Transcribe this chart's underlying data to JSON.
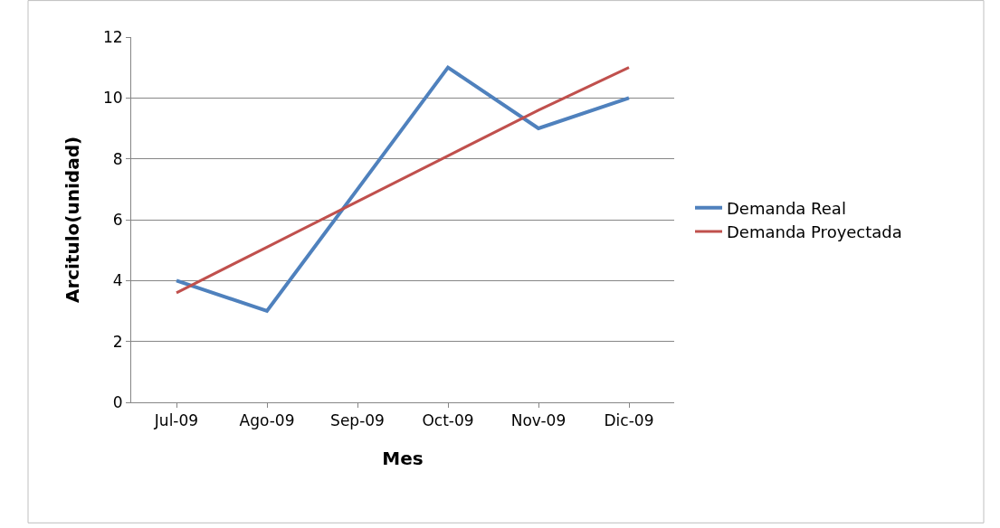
{
  "chart_data": {
    "type": "line",
    "xlabel": "Mes",
    "ylabel": "Arcitulo(unidad)",
    "categories": [
      "Jul-09",
      "Ago-09",
      "Sep-09",
      "Oct-09",
      "Nov-09",
      "Dic-09"
    ],
    "series": [
      {
        "name": "Demanda Real",
        "color": "#4f81bd",
        "values": [
          4,
          3,
          7,
          11,
          9,
          10
        ]
      },
      {
        "name": "Demanda Proyectada",
        "color": "#c0504d",
        "values": [
          3.6,
          5.1,
          6.6,
          8.1,
          9.6,
          11.0
        ]
      }
    ],
    "ylim": [
      0,
      12
    ],
    "yticks": [
      0,
      2,
      4,
      6,
      8,
      10,
      12
    ],
    "grid": "y",
    "legend": "right",
    "marker": "none",
    "line_style": "solid"
  }
}
